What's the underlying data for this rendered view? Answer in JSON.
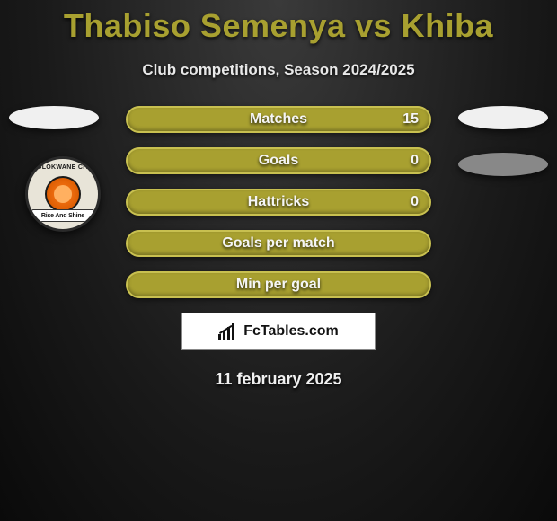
{
  "title": "Thabiso Semenya vs Khiba",
  "subtitle": "Club competitions, Season 2024/2025",
  "date": "11 february 2025",
  "brand": "FcTables.com",
  "badge": {
    "ring_text": "POLOKWANE CITY",
    "banner_text": "Rise And Shine"
  },
  "side_ovals": {
    "top_left_color": "#f0f0f0",
    "top_right_color": "#f0f0f0",
    "right_2_color": "#888888"
  },
  "bars": {
    "bar_color": "#a8a030",
    "bar_border": "#c8c050",
    "text_color": "#f5f5f5",
    "items": [
      {
        "label": "Matches",
        "value": "15"
      },
      {
        "label": "Goals",
        "value": "0"
      },
      {
        "label": "Hattricks",
        "value": "0"
      },
      {
        "label": "Goals per match",
        "value": ""
      },
      {
        "label": "Min per goal",
        "value": ""
      }
    ]
  },
  "colors": {
    "title": "#a8a030",
    "background_inner": "#3a3a3a",
    "background_outer": "#0a0a0a"
  }
}
